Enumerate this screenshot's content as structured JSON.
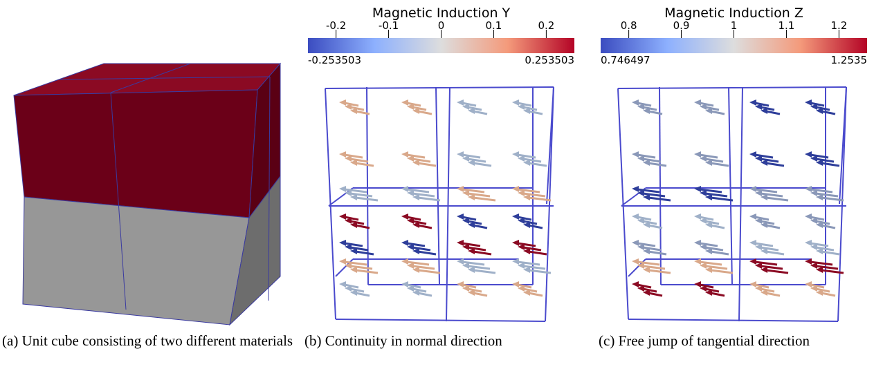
{
  "panels": [
    {
      "caption": "(a) Unit cube consisting of two different materials"
    },
    {
      "caption": "(b) Continuity in normal direction",
      "colorbar": {
        "title": "Magnetic Induction Y",
        "range": [
          -0.253503,
          0.253503
        ],
        "ticks": [
          -0.2,
          -0.1,
          0,
          0.1,
          0.2
        ]
      }
    },
    {
      "caption": "(c) Free jump of tangential direction",
      "colorbar": {
        "title": "Magnetic Induction Z",
        "range": [
          0.746497,
          1.2535
        ],
        "ticks": [
          0.8,
          0.9,
          1,
          1.1,
          1.2
        ]
      }
    }
  ]
}
